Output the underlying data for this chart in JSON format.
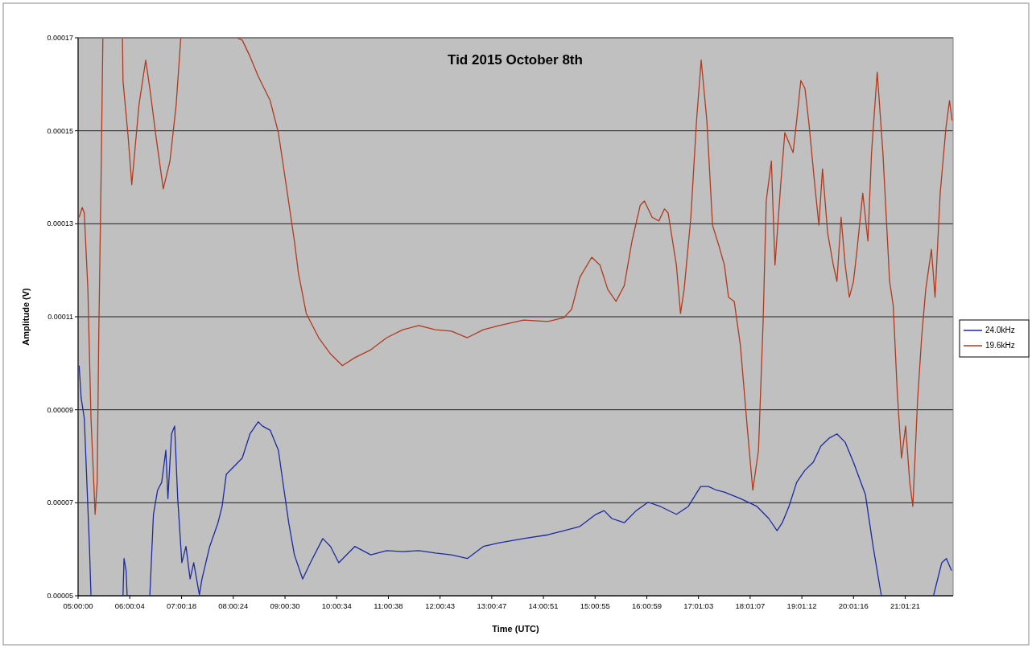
{
  "chart_data": {
    "type": "line",
    "title": "Tid 2015 October 8th",
    "xlabel": "Time (UTC)",
    "ylabel": "Amplitude (V)",
    "xlim": [
      5,
      21.95
    ],
    "xticks": [
      {
        "value": 5,
        "label": "05:00:00"
      },
      {
        "value": 6.0011,
        "label": "06:00:04"
      },
      {
        "value": 7.005,
        "label": "07:00:18"
      },
      {
        "value": 8.0067,
        "label": "08:00:24"
      },
      {
        "value": 9.0083,
        "label": "09:00:30"
      },
      {
        "value": 10.0094,
        "label": "10:00:34"
      },
      {
        "value": 11.0106,
        "label": "11:00:38"
      },
      {
        "value": 12.0119,
        "label": "12:00:43"
      },
      {
        "value": 13.0131,
        "label": "13:00:47"
      },
      {
        "value": 14.0142,
        "label": "14:00:51"
      },
      {
        "value": 15.0153,
        "label": "15:00:55"
      },
      {
        "value": 16.0164,
        "label": "16:00:59"
      },
      {
        "value": 17.0175,
        "label": "17:01:03"
      },
      {
        "value": 18.0186,
        "label": "18:01:07"
      },
      {
        "value": 19.02,
        "label": "19:01:12"
      },
      {
        "value": 20.0211,
        "label": "20:01:16"
      },
      {
        "value": 21.0225,
        "label": "21:01:21"
      }
    ],
    "ylim": [
      5e-05,
      0.00017
    ],
    "yticks": [
      {
        "value": 5e-05,
        "label": "0.00005"
      },
      {
        "value": 7e-05,
        "label": "0.00007"
      },
      {
        "value": 9e-05,
        "label": "0.00009"
      },
      {
        "value": 0.00011,
        "label": "0.00011"
      },
      {
        "value": 0.00013,
        "label": "0.00013"
      },
      {
        "value": 0.00015,
        "label": "0.00015"
      },
      {
        "value": 0.00017,
        "label": "0.00017"
      }
    ],
    "grid": "y",
    "legend": "right",
    "marker": "none",
    "line_style": "solid",
    "series": [
      {
        "name": "24.0kHz",
        "color": "#1c2aa0",
        "x": [
          5.02,
          5.06,
          5.12,
          5.17,
          5.22,
          5.25,
          5.6,
          5.87,
          5.89,
          5.93,
          5.95,
          6.2,
          6.39,
          6.46,
          6.54,
          6.62,
          6.7,
          6.74,
          6.81,
          6.87,
          6.93,
          7.01,
          7.09,
          7.17,
          7.24,
          7.35,
          7.4,
          7.55,
          7.71,
          7.79,
          7.87,
          8.02,
          8.18,
          8.33,
          8.49,
          8.57,
          8.72,
          8.88,
          8.99,
          9.08,
          9.19,
          9.35,
          9.5,
          9.74,
          9.89,
          10.05,
          10.36,
          10.67,
          10.98,
          11.29,
          11.6,
          11.92,
          12.23,
          12.54,
          12.85,
          13.16,
          13.63,
          14.1,
          14.41,
          14.72,
          15.03,
          15.19,
          15.34,
          15.58,
          15.81,
          16.04,
          16.28,
          16.59,
          16.82,
          17.06,
          17.21,
          17.37,
          17.52,
          17.83,
          18.15,
          18.38,
          18.54,
          18.64,
          18.77,
          18.92,
          19.08,
          19.24,
          19.39,
          19.55,
          19.7,
          19.86,
          20.02,
          20.25,
          20.4,
          20.56,
          21.0,
          21.57,
          21.73,
          21.82,
          21.92
        ],
        "values": [
          9.95e-05,
          9.25e-05,
          8.82e-05,
          7.44e-05,
          6.06e-05,
          5e-05,
          null,
          5e-05,
          5.8e-05,
          5.54e-05,
          5e-05,
          null,
          5e-05,
          6.75e-05,
          7.27e-05,
          7.44e-05,
          8.13e-05,
          7.09e-05,
          8.48e-05,
          8.65e-05,
          7.09e-05,
          5.71e-05,
          6.06e-05,
          5.36e-05,
          5.71e-05,
          5.02e-05,
          5.36e-05,
          6.06e-05,
          6.57e-05,
          6.92e-05,
          7.61e-05,
          7.78e-05,
          7.96e-05,
          8.48e-05,
          8.74e-05,
          8.65e-05,
          8.56e-05,
          8.13e-05,
          7.27e-05,
          6.57e-05,
          5.88e-05,
          5.36e-05,
          5.71e-05,
          6.23e-05,
          6.06e-05,
          5.71e-05,
          6.06e-05,
          5.88e-05,
          5.97e-05,
          5.95e-05,
          5.97e-05,
          5.92e-05,
          5.88e-05,
          5.8e-05,
          6.06e-05,
          6.14e-05,
          6.23e-05,
          6.31e-05,
          6.4e-05,
          6.49e-05,
          6.75e-05,
          6.83e-05,
          6.66e-05,
          6.57e-05,
          6.83e-05,
          7.01e-05,
          6.92e-05,
          6.75e-05,
          6.92e-05,
          7.35e-05,
          7.35e-05,
          7.27e-05,
          7.23e-05,
          7.09e-05,
          6.92e-05,
          6.66e-05,
          6.4e-05,
          6.57e-05,
          6.92e-05,
          7.44e-05,
          7.7e-05,
          7.87e-05,
          8.22e-05,
          8.39e-05,
          8.48e-05,
          8.3e-05,
          7.87e-05,
          7.18e-05,
          6.06e-05,
          5e-05,
          null,
          5e-05,
          5.71e-05,
          5.8e-05,
          5.54e-05
        ]
      },
      {
        "name": "19.6kHz",
        "color": "#b03a1e",
        "x": [
          5.02,
          5.08,
          5.12,
          5.19,
          5.25,
          5.33,
          5.37,
          5.4,
          5.45,
          5.48,
          5.65,
          5.86,
          5.87,
          5.97,
          6.04,
          6.18,
          6.31,
          6.39,
          6.51,
          6.65,
          6.78,
          6.9,
          6.99,
          7.5,
          8.07,
          8.18,
          8.33,
          8.49,
          8.72,
          8.88,
          9.03,
          9.19,
          9.27,
          9.42,
          9.66,
          9.89,
          10.12,
          10.36,
          10.67,
          10.98,
          11.29,
          11.6,
          11.92,
          12.23,
          12.54,
          12.85,
          13.16,
          13.63,
          14.1,
          14.41,
          14.56,
          14.72,
          14.95,
          15.11,
          15.26,
          15.42,
          15.58,
          15.73,
          15.89,
          15.97,
          16.12,
          16.25,
          16.36,
          16.43,
          16.59,
          16.67,
          16.74,
          16.87,
          16.98,
          17.07,
          17.18,
          17.29,
          17.41,
          17.52,
          17.6,
          17.71,
          17.83,
          17.96,
          18.07,
          18.18,
          18.27,
          18.33,
          18.43,
          18.5,
          18.61,
          18.69,
          18.85,
          18.92,
          19.0,
          19.08,
          19.16,
          19.27,
          19.35,
          19.42,
          19.52,
          19.63,
          19.7,
          19.78,
          19.86,
          19.94,
          20.02,
          20.09,
          20.2,
          20.3,
          20.37,
          20.48,
          20.59,
          20.72,
          20.79,
          20.87,
          20.95,
          21.03,
          21.11,
          21.17,
          21.26,
          21.34,
          21.42,
          21.53,
          21.6,
          21.7,
          21.81,
          21.88,
          21.93
        ],
        "values": [
          0.0001314,
          0.0001335,
          0.0001323,
          0.0001159,
          8.82e-05,
          6.75e-05,
          7.44e-05,
          0.0001055,
          0.0001435,
          0.00017,
          null,
          0.00017,
          0.0001608,
          0.0001487,
          0.0001384,
          0.0001556,
          0.0001652,
          0.0001591,
          0.0001487,
          0.0001375,
          0.0001435,
          0.0001556,
          0.00017,
          null,
          0.00017,
          0.0001695,
          0.000166,
          0.0001617,
          0.0001565,
          0.0001496,
          0.0001384,
          0.0001263,
          0.0001193,
          0.0001107,
          0.0001055,
          0.000102,
          9.95e-05,
          0.0001012,
          0.0001029,
          0.0001055,
          0.0001072,
          0.0001081,
          0.0001072,
          0.0001069,
          0.0001055,
          0.0001072,
          0.0001081,
          0.0001093,
          0.000109,
          0.0001098,
          0.0001116,
          0.0001185,
          0.0001228,
          0.0001211,
          0.0001159,
          0.0001133,
          0.0001167,
          0.0001263,
          0.000134,
          0.0001349,
          0.0001314,
          0.0001306,
          0.0001332,
          0.0001323,
          0.0001211,
          0.0001107,
          0.0001159,
          0.0001314,
          0.0001522,
          0.0001652,
          0.0001522,
          0.0001297,
          0.0001254,
          0.0001211,
          0.0001142,
          0.0001133,
          0.0001038,
          8.65e-05,
          7.27e-05,
          8.13e-05,
          0.000109,
          0.0001349,
          0.0001435,
          0.0001211,
          0.0001384,
          0.0001496,
          0.0001453,
          0.0001522,
          0.0001608,
          0.0001591,
          0.0001513,
          0.0001384,
          0.0001297,
          0.0001418,
          0.000128,
          0.0001211,
          0.0001176,
          0.0001314,
          0.0001211,
          0.0001142,
          0.0001176,
          0.0001245,
          0.0001366,
          0.0001263,
          0.0001453,
          0.0001626,
          0.0001453,
          0.0001176,
          0.0001124,
          9.34e-05,
          7.96e-05,
          8.65e-05,
          7.44e-05,
          6.92e-05,
          9.17e-05,
          0.0001055,
          0.0001159,
          0.0001245,
          0.0001142,
          0.0001366,
          0.0001505,
          0.0001565,
          0.0001522
        ]
      }
    ]
  }
}
